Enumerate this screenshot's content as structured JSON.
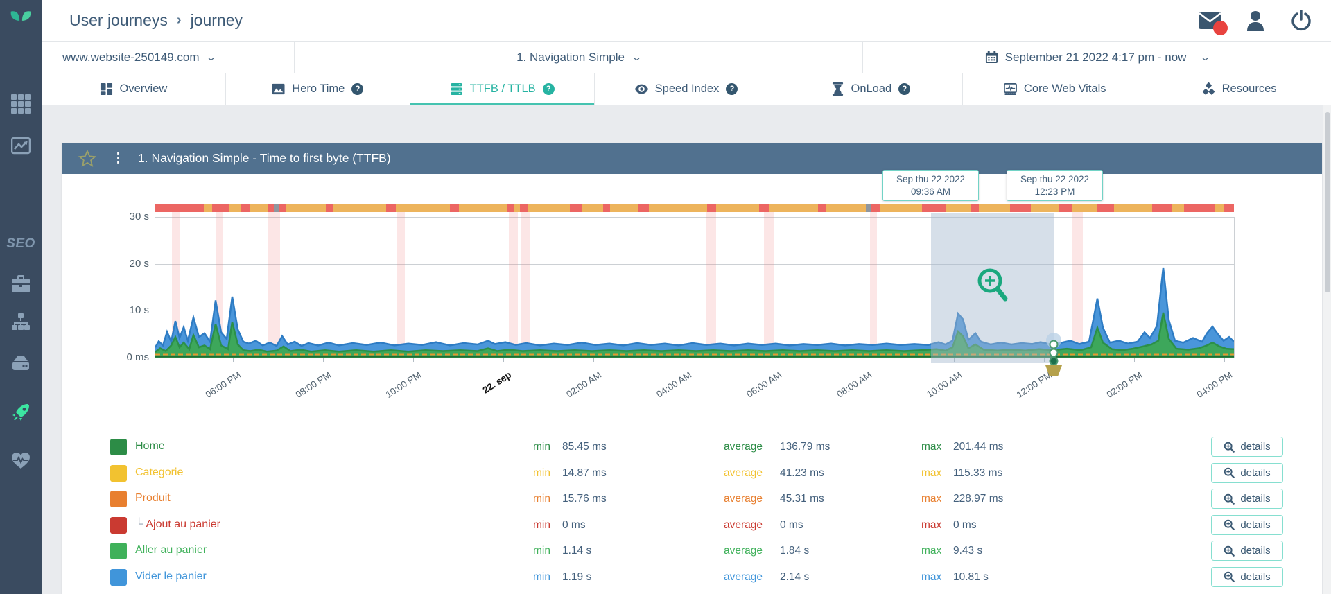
{
  "colors": {
    "accent_teal": "#26b3a2",
    "tab_underline": "#45c3b0",
    "sidebar_bg": "#3a4b60",
    "sidebar_icon": "#8ba1b7",
    "sidebar_active": "#3ce6a1",
    "panel_header_bg": "#51718f",
    "strip_amber": "#edb45c",
    "strip_red": "#ec6663",
    "strip_gray": "#8f969e",
    "badge_red": "#e8433f",
    "tooltip_border": "#72d3c6",
    "series_blue_fill": "#4a96da",
    "series_blue_stroke": "#2e7cc4",
    "series_green_fill": "#3da75b",
    "series_green_stroke": "#2c9047",
    "baseline_orange": "#e8972f",
    "baseline_darkgreen": "#1e6e34"
  },
  "sidebar": {
    "items": [
      {
        "icon": "grid-icon",
        "active": false
      },
      {
        "icon": "analytics-icon",
        "active": false
      },
      {
        "icon": "seo-label",
        "label": "SEO",
        "active": false
      },
      {
        "icon": "briefcase-icon",
        "active": false
      },
      {
        "icon": "sitemap-icon",
        "active": false
      },
      {
        "icon": "server-icon",
        "active": false
      },
      {
        "icon": "rocket-icon",
        "active": true
      },
      {
        "icon": "heart-pulse-icon",
        "active": false
      }
    ]
  },
  "header": {
    "breadcrumb": [
      "User journeys",
      "journey"
    ],
    "separator": "›"
  },
  "selectors": {
    "site": "www.website-250149.com",
    "journey": "1. Navigation Simple",
    "date_range": "September 21 2022 4:17 pm - now"
  },
  "tabs": [
    {
      "label": "Overview",
      "icon": "overview-icon",
      "help": false,
      "active": false
    },
    {
      "label": "Hero Time",
      "icon": "hero-time-icon",
      "help": true,
      "active": false
    },
    {
      "label": "TTFB / TTLB",
      "icon": "server-stack-icon",
      "help": true,
      "active": true
    },
    {
      "label": "Speed Index",
      "icon": "eye-icon",
      "help": true,
      "active": false
    },
    {
      "label": "OnLoad",
      "icon": "hourglass-icon",
      "help": true,
      "active": false
    },
    {
      "label": "Core Web Vitals",
      "icon": "web-vitals-icon",
      "help": false,
      "active": false
    },
    {
      "label": "Resources",
      "icon": "resources-icon",
      "help": false,
      "active": false
    }
  ],
  "panel": {
    "title": "1. Navigation Simple - Time to first byte (TTFB)"
  },
  "chart": {
    "type": "area-timeseries",
    "y_labels": [
      {
        "text": "30 s",
        "y": 62
      },
      {
        "text": "20 s",
        "y": 130
      },
      {
        "text": "10 s",
        "y": 197
      },
      {
        "text": "0 ms",
        "y": 265
      }
    ],
    "x_ticks": [
      247,
      377,
      507,
      637,
      767,
      897,
      1027,
      1157,
      1287,
      1417,
      1547,
      1677
    ],
    "x_labels": [
      "06:00 PM",
      "08:00 PM",
      "10:00 PM",
      "22. sep",
      "02:00 AM",
      "04:00 AM",
      "06:00 AM",
      "08:00 AM",
      "10:00 AM",
      "12:00 PM",
      "02:00 PM",
      "04:00 PM"
    ],
    "bold_x_label": "22. sep",
    "tooltips": [
      {
        "line1": "Sep thu 22 2022",
        "line2": "09:36 AM",
        "x": 1184
      },
      {
        "line1": "Sep thu 22 2022",
        "line2": "12:23 PM",
        "x": 1363
      }
    ],
    "selection": {
      "x": 1254,
      "w": 177
    },
    "strip_red_segments": [
      [
        135,
        16
      ],
      [
        151,
        54
      ],
      [
        217,
        24
      ],
      [
        259,
        12
      ],
      [
        297,
        9
      ],
      [
        313,
        10
      ],
      [
        381,
        11
      ],
      [
        468,
        14
      ],
      [
        560,
        13
      ],
      [
        643,
        10
      ],
      [
        661,
        12
      ],
      [
        733,
        18
      ],
      [
        781,
        10
      ],
      [
        831,
        16
      ],
      [
        931,
        13
      ],
      [
        1006,
        15
      ],
      [
        1091,
        12
      ],
      [
        1167,
        14
      ],
      [
        1241,
        35
      ],
      [
        1311,
        12
      ],
      [
        1368,
        30
      ],
      [
        1438,
        20
      ],
      [
        1493,
        25
      ],
      [
        1573,
        28
      ],
      [
        1619,
        45
      ],
      [
        1676,
        15
      ]
    ],
    "strip_gray_segments": [
      [
        306,
        7
      ],
      [
        1160,
        7
      ]
    ],
    "pink_bands": [
      [
        159,
        12
      ],
      [
        222,
        10
      ],
      [
        297,
        18
      ],
      [
        483,
        12
      ],
      [
        645,
        13
      ],
      [
        663,
        12
      ],
      [
        930,
        14
      ],
      [
        1013,
        14
      ],
      [
        1166,
        10
      ],
      [
        1457,
        16
      ]
    ],
    "series": {
      "blue": [
        [
          135,
          2.2
        ],
        [
          140,
          3.5
        ],
        [
          146,
          2.6
        ],
        [
          152,
          5.5
        ],
        [
          158,
          3.4
        ],
        [
          164,
          7.8
        ],
        [
          170,
          4.2
        ],
        [
          176,
          6.5
        ],
        [
          182,
          3.6
        ],
        [
          190,
          8.6
        ],
        [
          198,
          4.4
        ],
        [
          206,
          5.2
        ],
        [
          214,
          3.4
        ],
        [
          222,
          12.2
        ],
        [
          230,
          5.4
        ],
        [
          238,
          4.0
        ],
        [
          246,
          13.0
        ],
        [
          254,
          6.0
        ],
        [
          262,
          3.4
        ],
        [
          270,
          3.0
        ],
        [
          280,
          3.6
        ],
        [
          290,
          2.6
        ],
        [
          300,
          3.2
        ],
        [
          310,
          2.5
        ],
        [
          318,
          4.6
        ],
        [
          326,
          2.8
        ],
        [
          336,
          3.4
        ],
        [
          346,
          2.5
        ],
        [
          356,
          3.1
        ],
        [
          370,
          2.6
        ],
        [
          385,
          3.2
        ],
        [
          400,
          2.6
        ],
        [
          420,
          3.1
        ],
        [
          440,
          2.7
        ],
        [
          460,
          3.2
        ],
        [
          480,
          2.6
        ],
        [
          500,
          3.0
        ],
        [
          520,
          2.7
        ],
        [
          540,
          3.3
        ],
        [
          560,
          2.6
        ],
        [
          580,
          3.1
        ],
        [
          600,
          2.8
        ],
        [
          615,
          3.6
        ],
        [
          625,
          2.9
        ],
        [
          640,
          3.3
        ],
        [
          655,
          2.7
        ],
        [
          670,
          3.1
        ],
        [
          690,
          2.6
        ],
        [
          710,
          3.0
        ],
        [
          730,
          2.7
        ],
        [
          750,
          3.2
        ],
        [
          770,
          2.7
        ],
        [
          790,
          3.0
        ],
        [
          810,
          2.6
        ],
        [
          830,
          3.1
        ],
        [
          850,
          2.7
        ],
        [
          870,
          3.0
        ],
        [
          890,
          2.6
        ],
        [
          910,
          3.1
        ],
        [
          930,
          2.7
        ],
        [
          950,
          3.0
        ],
        [
          970,
          2.6
        ],
        [
          990,
          3.0
        ],
        [
          1010,
          2.7
        ],
        [
          1030,
          3.0
        ],
        [
          1050,
          2.6
        ],
        [
          1070,
          2.9
        ],
        [
          1090,
          2.7
        ],
        [
          1110,
          3.0
        ],
        [
          1130,
          2.6
        ],
        [
          1150,
          2.9
        ],
        [
          1170,
          2.7
        ],
        [
          1190,
          3.0
        ],
        [
          1210,
          2.7
        ],
        [
          1230,
          2.9
        ],
        [
          1250,
          2.7
        ],
        [
          1265,
          3.3
        ],
        [
          1275,
          2.8
        ],
        [
          1285,
          3.6
        ],
        [
          1293,
          9.4
        ],
        [
          1300,
          8.2
        ],
        [
          1308,
          3.8
        ],
        [
          1318,
          5.2
        ],
        [
          1326,
          3.4
        ],
        [
          1340,
          2.8
        ],
        [
          1355,
          3.2
        ],
        [
          1370,
          2.8
        ],
        [
          1385,
          3.1
        ],
        [
          1400,
          2.9
        ],
        [
          1412,
          3.3
        ],
        [
          1425,
          2.9
        ],
        [
          1440,
          3.1
        ],
        [
          1455,
          3.6
        ],
        [
          1468,
          2.9
        ],
        [
          1482,
          3.4
        ],
        [
          1494,
          12.6
        ],
        [
          1502,
          6.4
        ],
        [
          1512,
          3.2
        ],
        [
          1525,
          3.6
        ],
        [
          1538,
          3.0
        ],
        [
          1552,
          3.4
        ],
        [
          1562,
          5.4
        ],
        [
          1570,
          4.2
        ],
        [
          1580,
          6.8
        ],
        [
          1589,
          19.2
        ],
        [
          1597,
          8.0
        ],
        [
          1606,
          3.6
        ],
        [
          1618,
          3.2
        ],
        [
          1632,
          4.2
        ],
        [
          1645,
          3.4
        ],
        [
          1652,
          5.2
        ],
        [
          1660,
          6.6
        ],
        [
          1668,
          5.0
        ],
        [
          1676,
          3.6
        ],
        [
          1684,
          4.4
        ],
        [
          1691,
          3.4
        ]
      ],
      "green": [
        [
          135,
          1.2
        ],
        [
          142,
          2.0
        ],
        [
          150,
          1.4
        ],
        [
          158,
          2.6
        ],
        [
          164,
          4.4
        ],
        [
          170,
          2.2
        ],
        [
          176,
          3.2
        ],
        [
          184,
          1.8
        ],
        [
          190,
          4.8
        ],
        [
          198,
          2.2
        ],
        [
          206,
          2.6
        ],
        [
          214,
          1.8
        ],
        [
          222,
          7.2
        ],
        [
          230,
          2.6
        ],
        [
          240,
          1.8
        ],
        [
          246,
          7.6
        ],
        [
          254,
          2.8
        ],
        [
          262,
          1.6
        ],
        [
          272,
          1.4
        ],
        [
          284,
          1.7
        ],
        [
          296,
          1.3
        ],
        [
          310,
          1.5
        ],
        [
          320,
          2.4
        ],
        [
          330,
          1.4
        ],
        [
          345,
          1.7
        ],
        [
          360,
          1.3
        ],
        [
          380,
          1.6
        ],
        [
          400,
          1.3
        ],
        [
          425,
          1.6
        ],
        [
          450,
          1.3
        ],
        [
          475,
          1.6
        ],
        [
          500,
          1.3
        ],
        [
          525,
          1.6
        ],
        [
          550,
          1.4
        ],
        [
          575,
          1.6
        ],
        [
          600,
          1.4
        ],
        [
          615,
          2.0
        ],
        [
          628,
          1.4
        ],
        [
          645,
          1.7
        ],
        [
          665,
          1.4
        ],
        [
          690,
          1.6
        ],
        [
          715,
          1.4
        ],
        [
          740,
          1.6
        ],
        [
          765,
          1.4
        ],
        [
          790,
          1.6
        ],
        [
          815,
          1.4
        ],
        [
          840,
          1.6
        ],
        [
          865,
          1.4
        ],
        [
          890,
          1.6
        ],
        [
          915,
          1.4
        ],
        [
          940,
          1.6
        ],
        [
          965,
          1.4
        ],
        [
          990,
          1.6
        ],
        [
          1015,
          1.4
        ],
        [
          1040,
          1.6
        ],
        [
          1065,
          1.4
        ],
        [
          1090,
          1.6
        ],
        [
          1115,
          1.4
        ],
        [
          1140,
          1.6
        ],
        [
          1165,
          1.4
        ],
        [
          1190,
          1.6
        ],
        [
          1215,
          1.4
        ],
        [
          1240,
          1.6
        ],
        [
          1262,
          1.8
        ],
        [
          1275,
          1.5
        ],
        [
          1285,
          2.2
        ],
        [
          1293,
          5.6
        ],
        [
          1300,
          4.6
        ],
        [
          1308,
          2.0
        ],
        [
          1318,
          2.8
        ],
        [
          1330,
          1.7
        ],
        [
          1350,
          1.5
        ],
        [
          1370,
          1.7
        ],
        [
          1390,
          1.5
        ],
        [
          1410,
          1.8
        ],
        [
          1430,
          1.6
        ],
        [
          1450,
          1.9
        ],
        [
          1470,
          1.6
        ],
        [
          1485,
          2.2
        ],
        [
          1494,
          6.4
        ],
        [
          1502,
          3.2
        ],
        [
          1515,
          1.8
        ],
        [
          1530,
          1.6
        ],
        [
          1545,
          1.9
        ],
        [
          1560,
          2.4
        ],
        [
          1572,
          2.8
        ],
        [
          1582,
          3.6
        ],
        [
          1589,
          9.6
        ],
        [
          1597,
          4.0
        ],
        [
          1608,
          1.9
        ],
        [
          1625,
          1.7
        ],
        [
          1640,
          2.0
        ],
        [
          1652,
          2.6
        ],
        [
          1660,
          3.2
        ],
        [
          1670,
          2.4
        ],
        [
          1680,
          1.9
        ],
        [
          1691,
          1.8
        ]
      ]
    }
  },
  "legend": {
    "stat_labels": {
      "min": "min",
      "average": "average",
      "max": "max"
    },
    "details_label": "details",
    "rows": [
      {
        "label": "Home",
        "color": "#2c8c46",
        "indent": false,
        "min": "85.45 ms",
        "average": "136.79 ms",
        "max": "201.44 ms"
      },
      {
        "label": "Categorie",
        "color": "#f2c230",
        "indent": false,
        "min": "14.87 ms",
        "average": "41.23 ms",
        "max": "115.33 ms"
      },
      {
        "label": "Produit",
        "color": "#e87f2f",
        "indent": false,
        "min": "15.76 ms",
        "average": "45.31 ms",
        "max": "228.97 ms"
      },
      {
        "label": "Ajout au panier",
        "color": "#ca3a31",
        "indent": true,
        "min": "0 ms",
        "average": "0 ms",
        "max": "0 ms"
      },
      {
        "label": "Aller au panier",
        "color": "#3fb15a",
        "indent": false,
        "min": "1.14 s",
        "average": "1.84 s",
        "max": "9.43 s"
      },
      {
        "label": "Vider le panier",
        "color": "#4095da",
        "indent": false,
        "min": "1.19 s",
        "average": "2.14 s",
        "max": "10.81 s"
      }
    ]
  }
}
